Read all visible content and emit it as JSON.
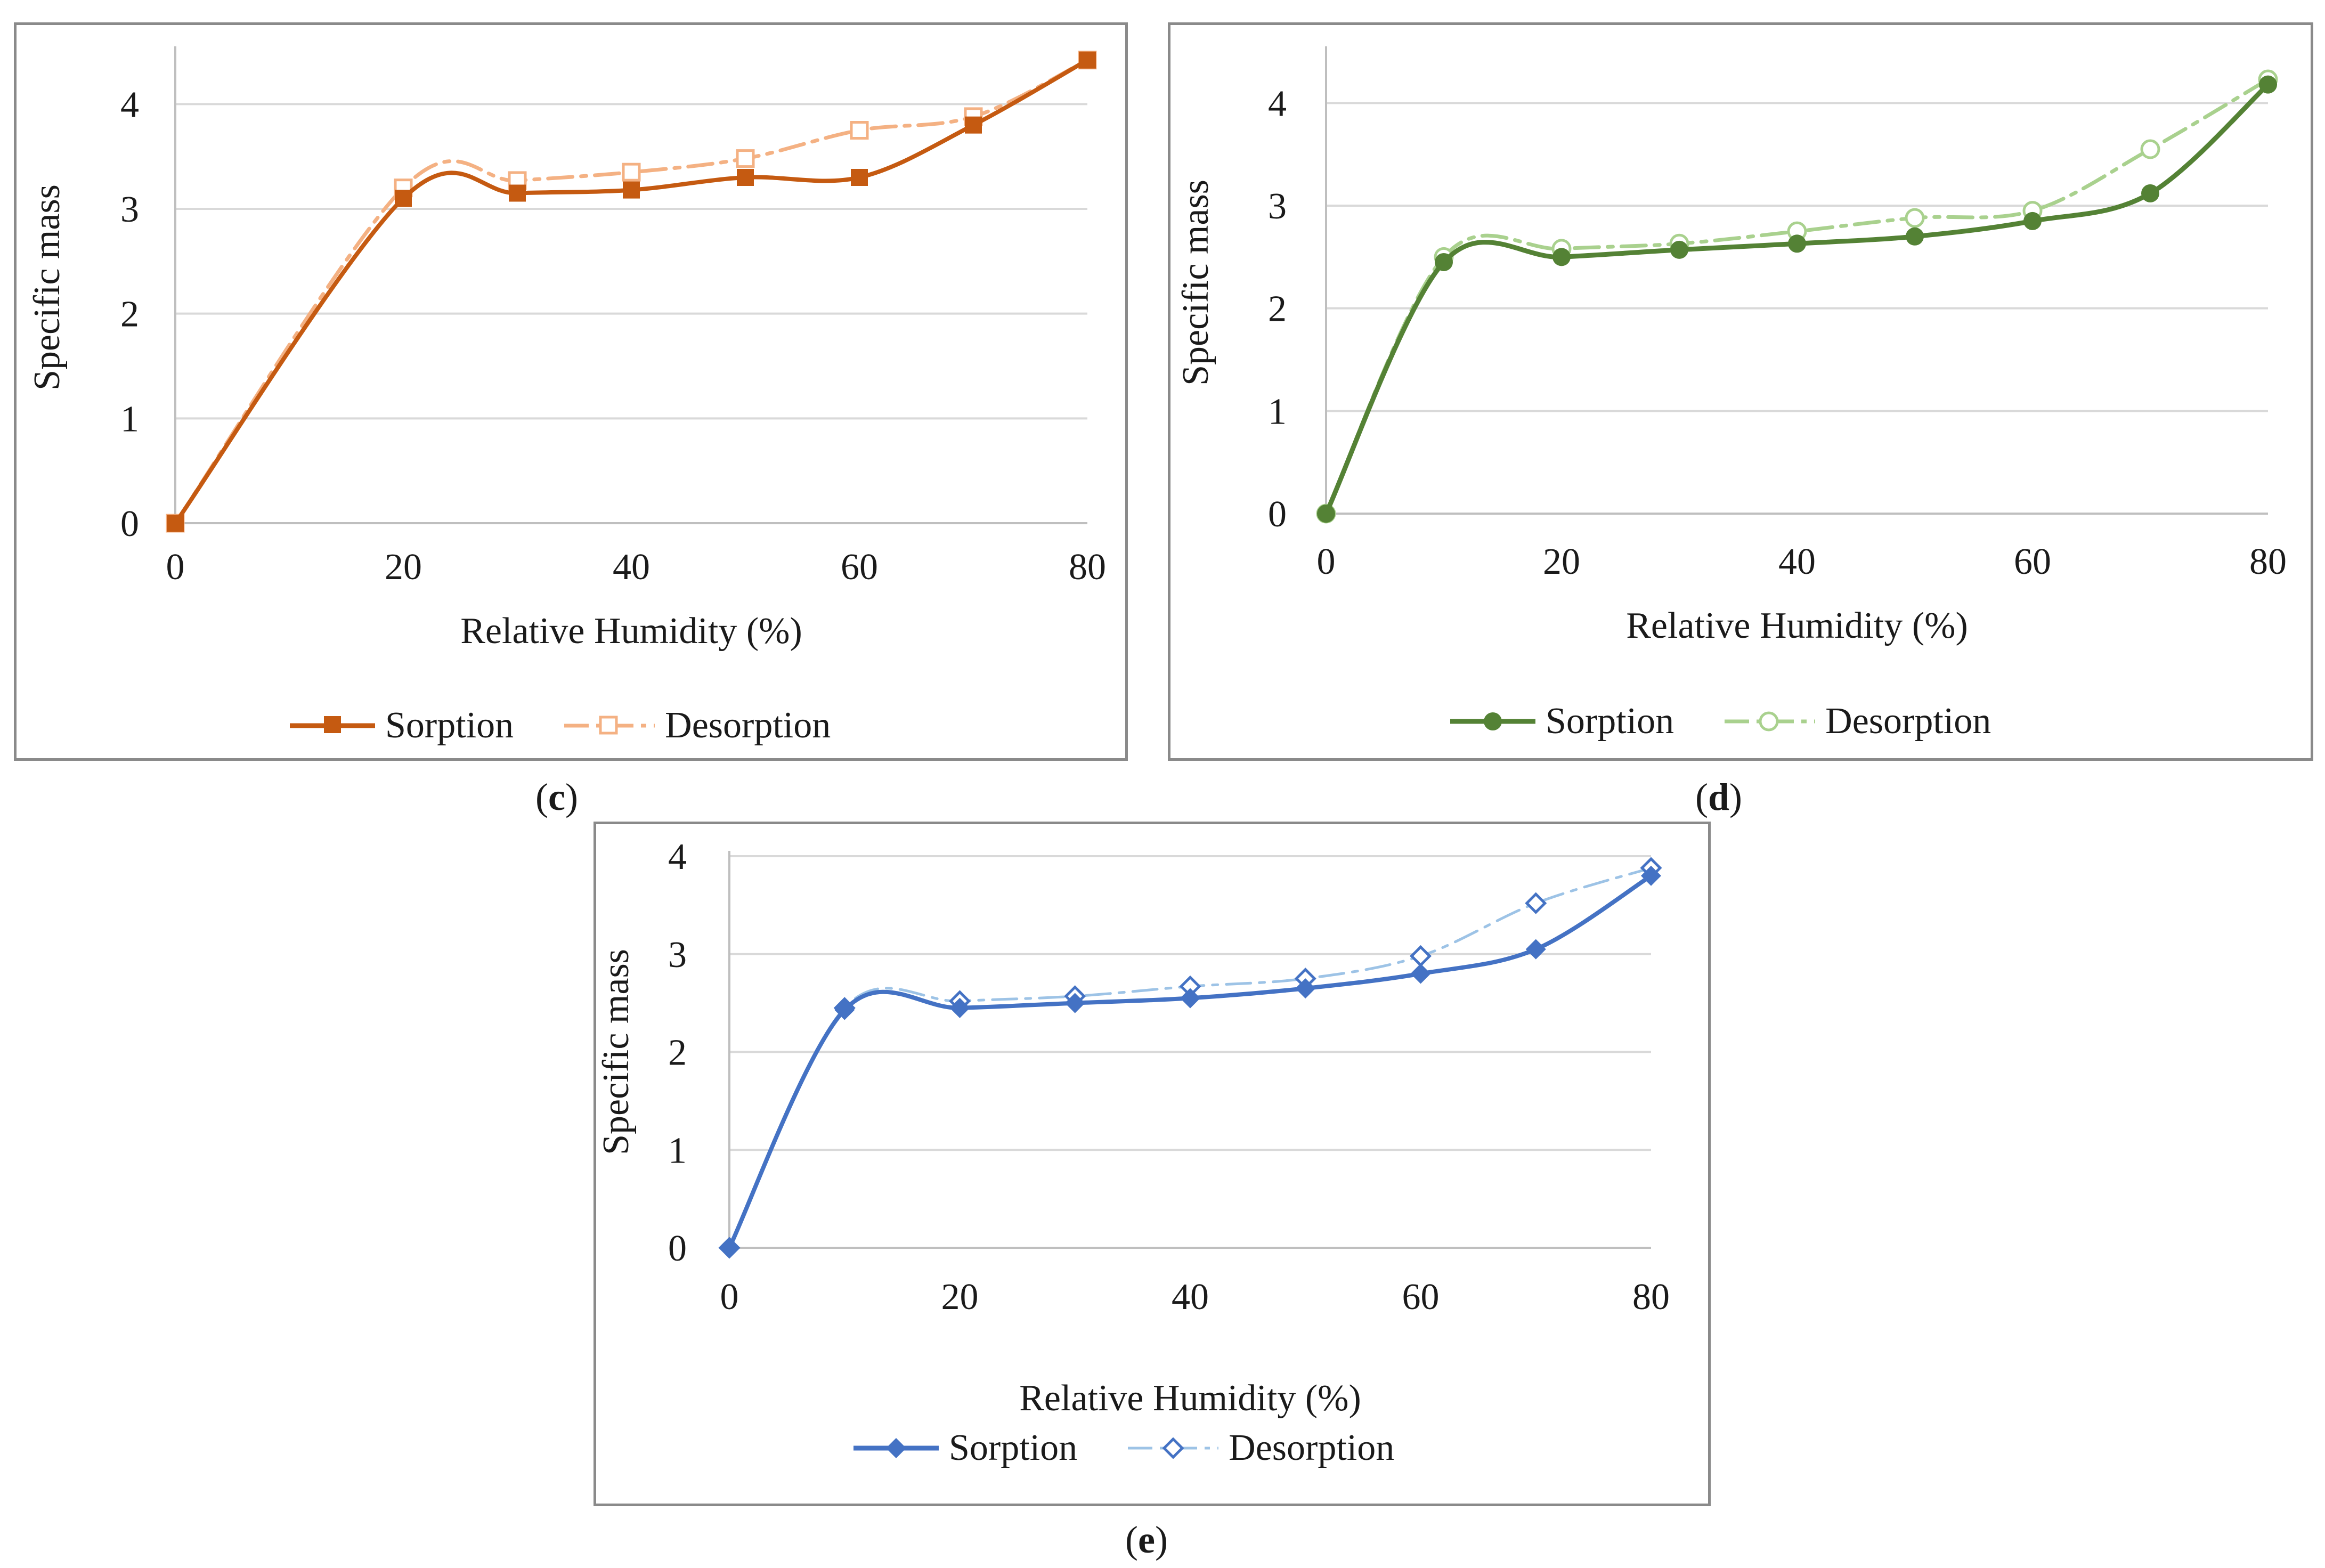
{
  "chart_data": [
    {
      "id": "c",
      "type": "line",
      "caption_open": "(",
      "caption_letter": "c",
      "caption_close": ")",
      "title": "",
      "xlabel": "Relative Humidity (%)",
      "ylabel": "Specific mass",
      "xlim": [
        0,
        80
      ],
      "ylim": [
        0,
        4.5
      ],
      "xticks": [
        0,
        20,
        40,
        60,
        80
      ],
      "yticks": [
        0,
        1,
        2,
        3,
        4
      ],
      "grid": true,
      "legend_position": "bottom",
      "colors": {
        "sorption": "#c55a11",
        "desorption": "#f4b183"
      },
      "series": [
        {
          "name": "Sorption",
          "marker": "filled-square",
          "x": [
            0,
            20,
            30,
            40,
            50,
            60,
            70,
            80
          ],
          "y": [
            0,
            3.1,
            3.15,
            3.18,
            3.3,
            3.3,
            3.8,
            4.42
          ]
        },
        {
          "name": "Desorption",
          "marker": "open-square",
          "x": [
            0,
            20,
            30,
            40,
            50,
            60,
            70,
            80
          ],
          "y": [
            0,
            3.2,
            3.27,
            3.35,
            3.48,
            3.75,
            3.88,
            4.42
          ]
        }
      ]
    },
    {
      "id": "d",
      "type": "line",
      "caption_open": "(",
      "caption_letter": "d",
      "caption_close": ")",
      "title": "",
      "xlabel": "Relative Humidity (%)",
      "ylabel": "Specific mass",
      "xlim": [
        0,
        80
      ],
      "ylim": [
        0,
        4.5
      ],
      "xticks": [
        0,
        20,
        40,
        60,
        80
      ],
      "yticks": [
        0,
        1,
        2,
        3,
        4
      ],
      "grid": true,
      "legend_position": "bottom",
      "colors": {
        "sorption": "#548235",
        "desorption": "#a9d18e"
      },
      "series": [
        {
          "name": "Sorption",
          "marker": "filled-circle",
          "x": [
            0,
            10,
            20,
            30,
            40,
            50,
            60,
            70,
            80
          ],
          "y": [
            0,
            2.45,
            2.5,
            2.57,
            2.63,
            2.7,
            2.85,
            3.12,
            4.18
          ]
        },
        {
          "name": "Desorption",
          "marker": "open-circle",
          "x": [
            0,
            10,
            20,
            30,
            40,
            50,
            60,
            70,
            80
          ],
          "y": [
            0,
            2.5,
            2.58,
            2.63,
            2.75,
            2.88,
            2.95,
            3.55,
            4.23
          ]
        }
      ]
    },
    {
      "id": "e",
      "type": "line",
      "caption_open": "(",
      "caption_letter": "e",
      "caption_close": ")",
      "title": "",
      "xlabel": "Relative Humidity (%)",
      "ylabel": "Specific mass",
      "xlim": [
        0,
        80
      ],
      "ylim": [
        0,
        4
      ],
      "xticks": [
        0,
        20,
        40,
        60,
        80
      ],
      "yticks": [
        0,
        1,
        2,
        3,
        4
      ],
      "grid": true,
      "legend_position": "bottom",
      "colors": {
        "sorption": "#4472c4",
        "desorption": "#9dc3e6"
      },
      "series": [
        {
          "name": "Sorption",
          "marker": "filled-diamond",
          "x": [
            0,
            10,
            20,
            30,
            40,
            50,
            60,
            70,
            80
          ],
          "y": [
            0,
            2.43,
            2.45,
            2.5,
            2.55,
            2.65,
            2.8,
            3.05,
            3.8
          ]
        },
        {
          "name": "Desorption",
          "marker": "open-diamond",
          "x": [
            0,
            10,
            20,
            30,
            40,
            50,
            60,
            70,
            80
          ],
          "y": [
            0,
            2.45,
            2.52,
            2.57,
            2.67,
            2.75,
            2.98,
            3.52,
            3.88
          ]
        }
      ]
    }
  ]
}
